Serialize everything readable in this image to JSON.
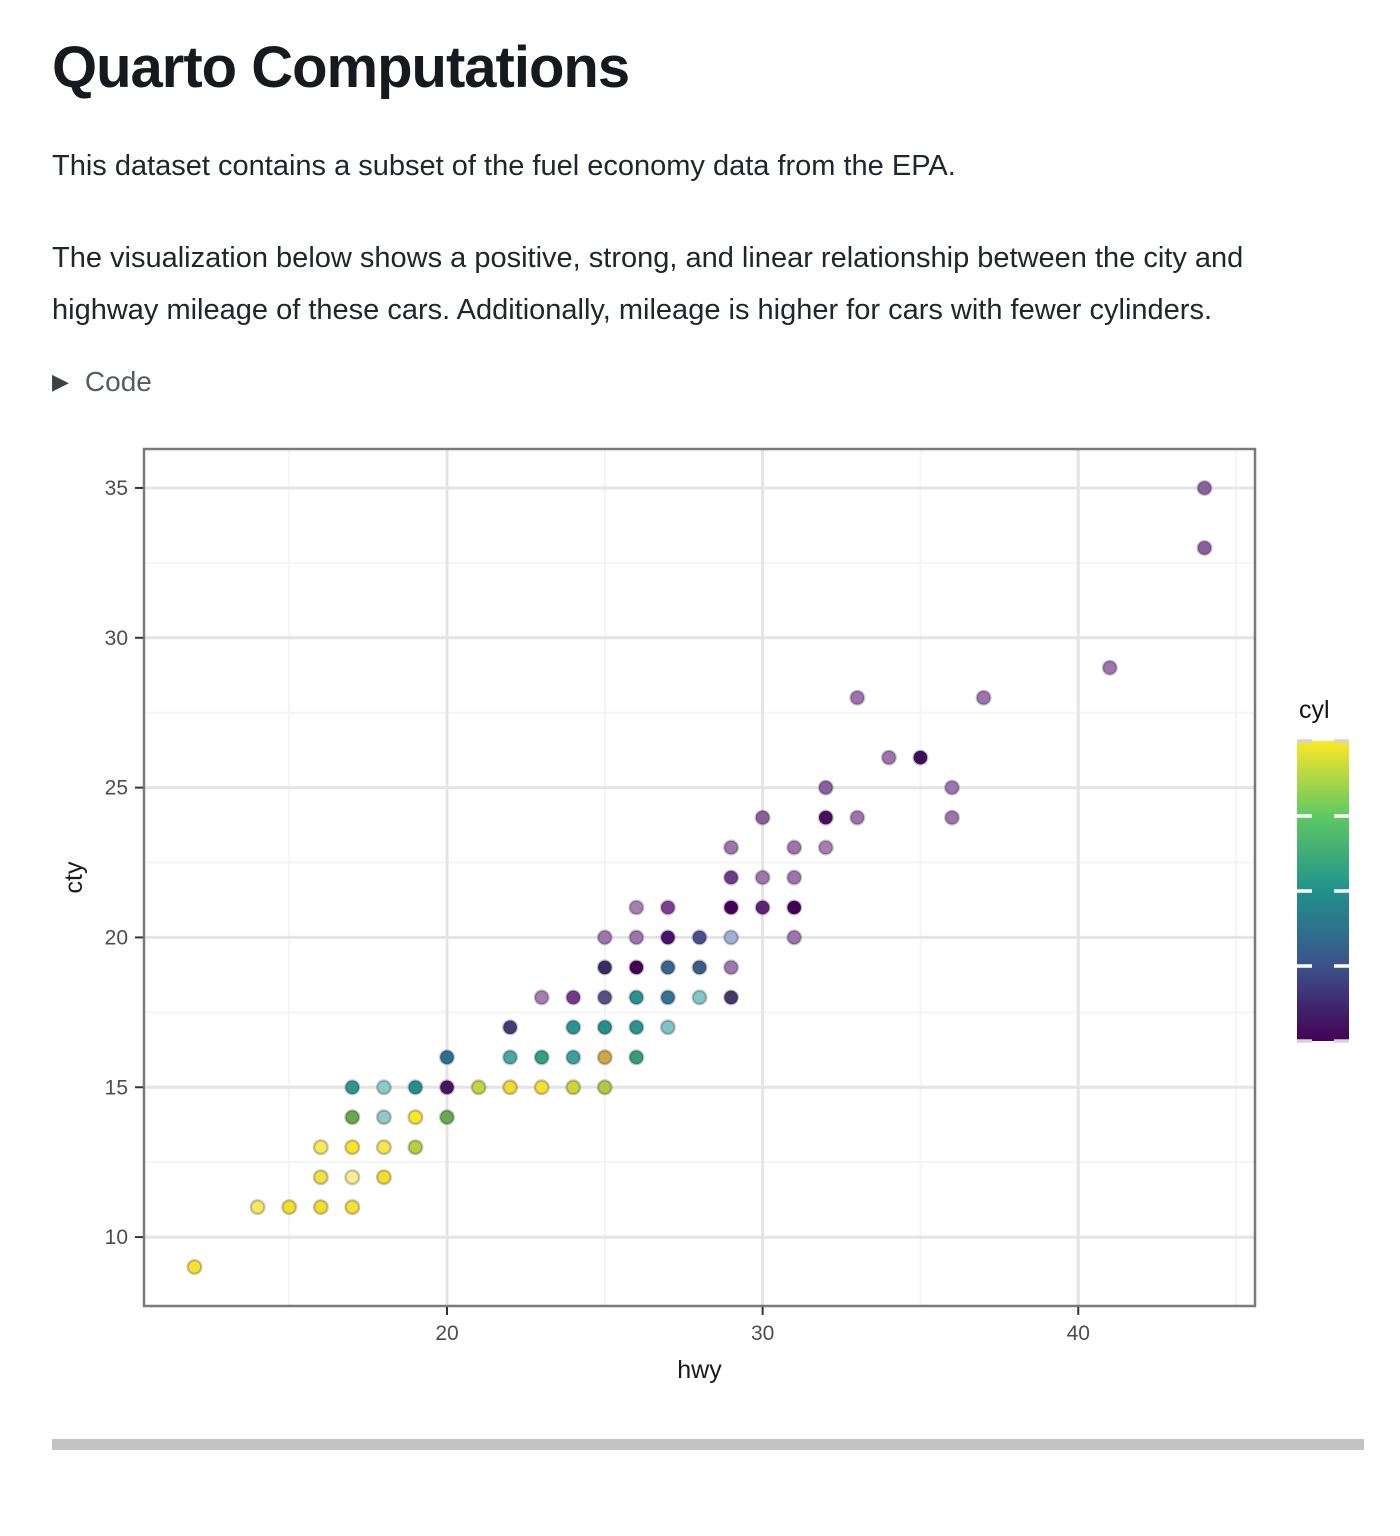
{
  "page": {
    "title": "Quarto Computations",
    "paragraph1": "This dataset contains a subset of the fuel economy data from the EPA.",
    "paragraph2": "The visualization below shows a positive, strong, and linear relationship between the city and highway mileage of these cars. Additionally, mileage is higher for cars with fewer cylinders.",
    "code_toggle_label": "Code",
    "caret_icon": "▶"
  },
  "chart_data": {
    "type": "scatter",
    "title": "",
    "xlabel": "hwy",
    "ylabel": "cty",
    "x_ticks": [
      20,
      30,
      40
    ],
    "x_minor_ticks": [
      15,
      25,
      35,
      45
    ],
    "y_ticks": [
      10,
      15,
      20,
      25,
      30,
      35
    ],
    "y_minor_ticks": [
      12.5,
      17.5,
      22.5,
      27.5,
      32.5
    ],
    "xlim": [
      10.4,
      45.6
    ],
    "ylim": [
      7.7,
      36.3
    ],
    "grid": true,
    "legend": {
      "title": "cyl",
      "style": "colorbar",
      "position": "right",
      "min": 4,
      "max": 8,
      "ticks": [
        4,
        5,
        6,
        7,
        8
      ],
      "gradient_top_to_bottom": [
        "#fde725",
        "#5ec962",
        "#21918c",
        "#3b528b",
        "#440154"
      ]
    },
    "series_note": "points are [hwy, cty, rendered_color]; color encodes cyl via viridis with alpha blending",
    "points": [
      [
        12,
        9,
        "#f4e32b"
      ],
      [
        14,
        11,
        "#f6e960"
      ],
      [
        15,
        11,
        "#f2e028"
      ],
      [
        16,
        11,
        "#f2e028"
      ],
      [
        17,
        11,
        "#f2e231"
      ],
      [
        16,
        12,
        "#f2e13e"
      ],
      [
        17,
        12,
        "#f8f08e"
      ],
      [
        18,
        12,
        "#f1e029"
      ],
      [
        16,
        13,
        "#f7ea53"
      ],
      [
        17,
        13,
        "#f5e626"
      ],
      [
        18,
        13,
        "#f6e84c"
      ],
      [
        19,
        13,
        "#b6d03c"
      ],
      [
        17,
        14,
        "#67a849"
      ],
      [
        18,
        14,
        "#8ecbc7"
      ],
      [
        19,
        14,
        "#f7e926"
      ],
      [
        20,
        14,
        "#63ab4d"
      ],
      [
        17,
        15,
        "#2c978f"
      ],
      [
        18,
        15,
        "#8ecbc7"
      ],
      [
        19,
        15,
        "#21918c"
      ],
      [
        20,
        15,
        "#45155e"
      ],
      [
        21,
        15,
        "#c3d73a"
      ],
      [
        22,
        15,
        "#eedc2e"
      ],
      [
        23,
        15,
        "#f2e22a"
      ],
      [
        24,
        15,
        "#cbd834"
      ],
      [
        25,
        15,
        "#b3c93c"
      ],
      [
        20,
        16,
        "#2e6f8e"
      ],
      [
        22,
        16,
        "#48a7a4"
      ],
      [
        23,
        16,
        "#2fa080"
      ],
      [
        24,
        16,
        "#3aa29b"
      ],
      [
        25,
        16,
        "#d0a93c"
      ],
      [
        26,
        16,
        "#379d74"
      ],
      [
        22,
        17,
        "#443d72"
      ],
      [
        24,
        17,
        "#27968f"
      ],
      [
        25,
        17,
        "#21918c"
      ],
      [
        26,
        17,
        "#27968f"
      ],
      [
        27,
        17,
        "#7cc5c0"
      ],
      [
        23,
        18,
        "#a47cb0"
      ],
      [
        24,
        18,
        "#6f3a8c"
      ],
      [
        25,
        18,
        "#575085"
      ],
      [
        26,
        18,
        "#26948e"
      ],
      [
        27,
        18,
        "#357291"
      ],
      [
        28,
        18,
        "#80cac3"
      ],
      [
        29,
        18,
        "#433768"
      ],
      [
        25,
        19,
        "#3c2b63"
      ],
      [
        26,
        19,
        "#440154"
      ],
      [
        27,
        19,
        "#38678c"
      ],
      [
        28,
        19,
        "#3a5e87"
      ],
      [
        29,
        19,
        "#9d78ad"
      ],
      [
        25,
        20,
        "#9d74ac"
      ],
      [
        26,
        20,
        "#9d74ac"
      ],
      [
        27,
        20,
        "#4a1070"
      ],
      [
        28,
        20,
        "#46518f"
      ],
      [
        29,
        20,
        "#9db1d4"
      ],
      [
        31,
        20,
        "#9d74ac"
      ],
      [
        26,
        21,
        "#a47fb0"
      ],
      [
        27,
        21,
        "#7b3f94"
      ],
      [
        29,
        21,
        "#440154"
      ],
      [
        30,
        21,
        "#5b2573"
      ],
      [
        31,
        21,
        "#440154"
      ],
      [
        29,
        22,
        "#6f3a8c"
      ],
      [
        30,
        22,
        "#9d74ac"
      ],
      [
        31,
        22,
        "#9d74ac"
      ],
      [
        29,
        23,
        "#9d74ac"
      ],
      [
        31,
        23,
        "#9d74ac"
      ],
      [
        32,
        23,
        "#a47fb0"
      ],
      [
        30,
        24,
        "#8a5f9e"
      ],
      [
        32,
        24,
        "#4a0f5d"
      ],
      [
        33,
        24,
        "#9d74ac"
      ],
      [
        36,
        24,
        "#9d74ac"
      ],
      [
        32,
        25,
        "#8a5f9e"
      ],
      [
        36,
        25,
        "#9d74ac"
      ],
      [
        34,
        26,
        "#9d74ac"
      ],
      [
        35,
        26,
        "#3d0f58"
      ],
      [
        33,
        28,
        "#9d74ac"
      ],
      [
        37,
        28,
        "#9d74ac"
      ],
      [
        41,
        29,
        "#9d74ac"
      ],
      [
        44,
        33,
        "#8a5f9e"
      ],
      [
        44,
        35,
        "#8a5f9e"
      ]
    ],
    "style": {
      "panel_border": "#7a7a7a",
      "grid_major": "#e4e4e4",
      "grid_minor": "#f4f4f4",
      "tick_mark": "#333333",
      "tick_label": "#4d4d4d",
      "axis_title": "#1a1a1a",
      "point_radius": 6.8
    }
  }
}
